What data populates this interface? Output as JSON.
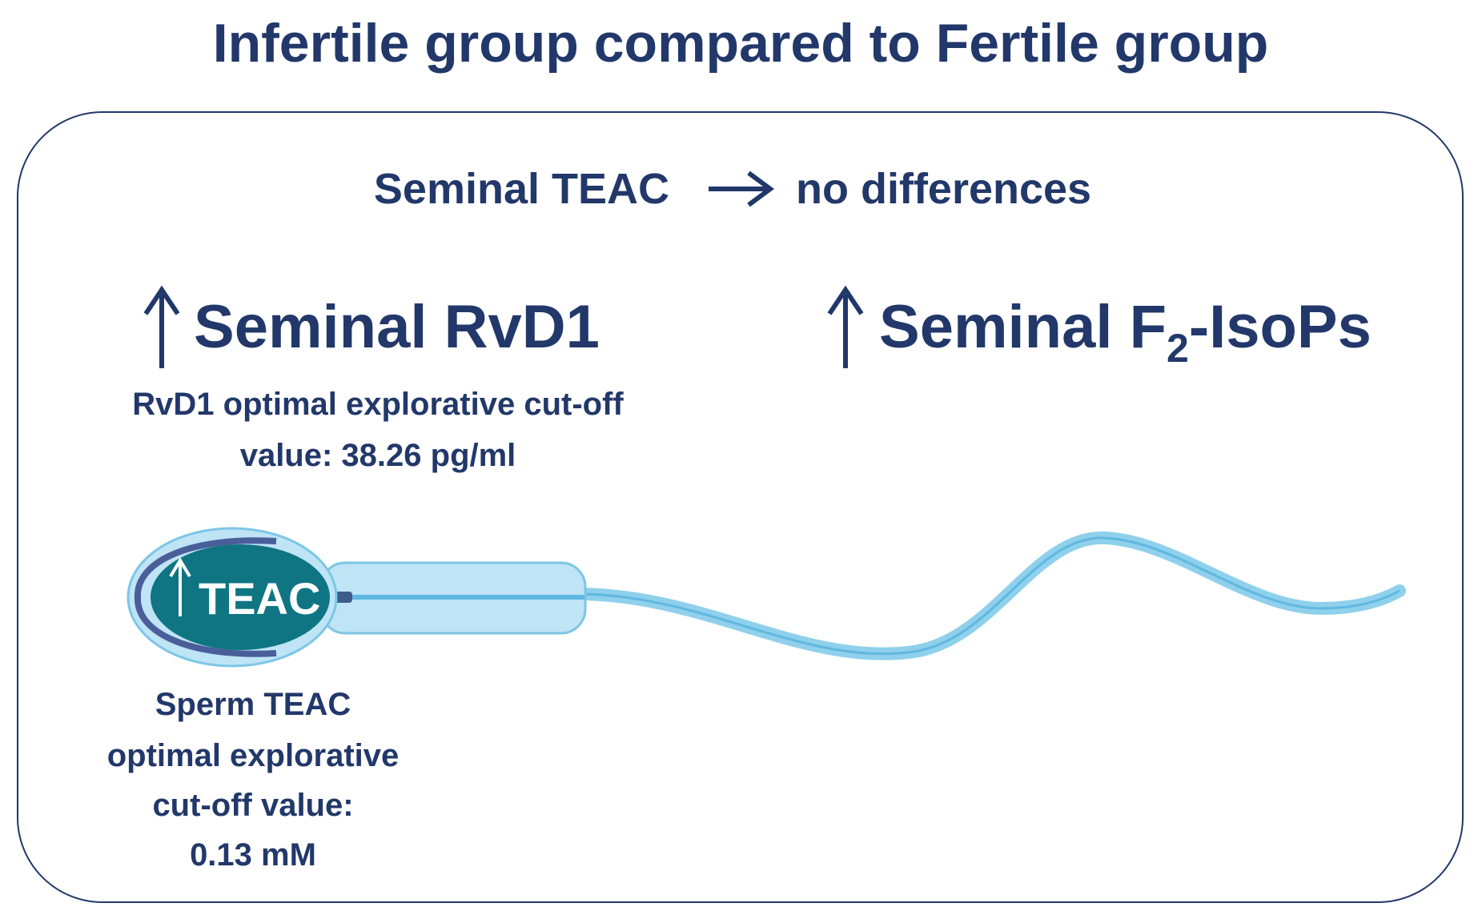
{
  "title": "Infertile group compared to Fertile group",
  "teac_row": {
    "left": "Seminal TEAC",
    "right": "no differences"
  },
  "rvd1": {
    "label": "Seminal RvD1",
    "cutoff_lines": [
      "RvD1 optimal explorative cut-off",
      "value: 38.26 pg/ml"
    ]
  },
  "isops": {
    "label_parts": [
      "Seminal F",
      "2",
      "-IsoPs"
    ]
  },
  "sperm": {
    "head_label": "TEAC",
    "cutoff_lines": [
      "Sperm TEAC",
      "optimal explorative",
      "cut-off value:",
      "0.13 mM"
    ]
  }
}
